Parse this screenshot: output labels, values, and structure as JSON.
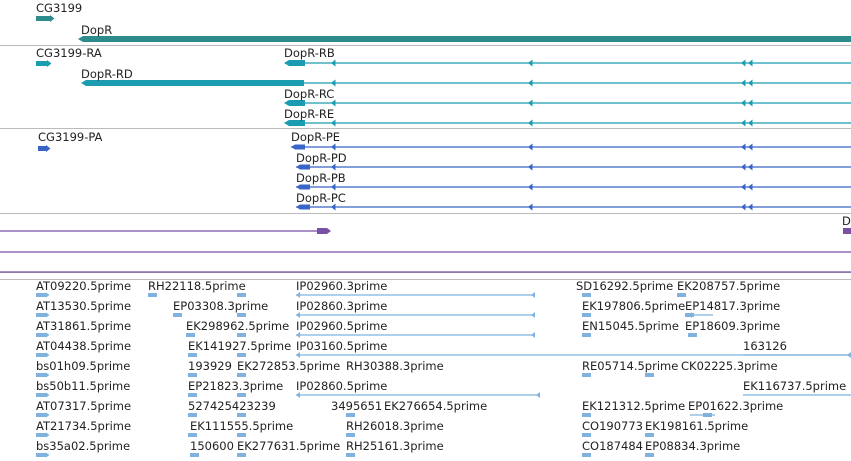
{
  "colors": {
    "gene": "#2e8b8b",
    "rna": "#1b9cb0",
    "protein": "#3a64c8",
    "purple": "#7a4fa6",
    "est": "#7fb3dd"
  },
  "tracks": {
    "genes": [
      {
        "label": "CG3199"
      },
      {
        "label": "DopR"
      }
    ],
    "transcripts": [
      {
        "label": "CG3199-RA"
      },
      {
        "label": "DopR-RB"
      },
      {
        "label": "DopR-RD"
      },
      {
        "label": "DopR-RC"
      },
      {
        "label": "DopR-RE"
      }
    ],
    "proteins": [
      {
        "label": "CG3199-PA"
      },
      {
        "label": "DopR-PE"
      },
      {
        "label": "DopR-PD"
      },
      {
        "label": "DopR-PB"
      },
      {
        "label": "DopR-PC"
      }
    ],
    "other": {
      "cut_label": "D"
    }
  },
  "ests": [
    {
      "label": "AT09220.5prime"
    },
    {
      "label": "RH22118.5prime"
    },
    {
      "label": "IP02960.3prime"
    },
    {
      "label": "SD16292.5prime"
    },
    {
      "label": "EK208757.5prime"
    },
    {
      "label": "AT13530.5prime"
    },
    {
      "label": "EP03308.3prime"
    },
    {
      "label": "IP02860.3prime"
    },
    {
      "label": "EK197806.5prime"
    },
    {
      "label": "EP14817.3prime"
    },
    {
      "label": "AT31861.5prime"
    },
    {
      "label": "EK298962.5prime"
    },
    {
      "label": "IP02960.5prime"
    },
    {
      "label": "EN15045.5prime"
    },
    {
      "label": "EP18609.3prime"
    },
    {
      "label": "AT04438.5prime"
    },
    {
      "label": "EK141927.5prime"
    },
    {
      "label": "IP03160.5prime"
    },
    {
      "label": "163126"
    },
    {
      "label": "bs01h09.5prime"
    },
    {
      "label": "193929"
    },
    {
      "label": "EK272853.5prime"
    },
    {
      "label": "RH30388.3prime"
    },
    {
      "label": "RE05714.5prime"
    },
    {
      "label": "CK02225.3prime"
    },
    {
      "label": "bs50b11.5prime"
    },
    {
      "label": "EP21823.3prime"
    },
    {
      "label": "IP02860.5prime"
    },
    {
      "label": "EK116737.5prime"
    },
    {
      "label": "AT07317.5prime"
    },
    {
      "label": "527425423239"
    },
    {
      "label": "3495651"
    },
    {
      "label": "EK276654.5prime"
    },
    {
      "label": "EK121312.5prime"
    },
    {
      "label": "EP01622.3prime"
    },
    {
      "label": "AT21734.5prime"
    },
    {
      "label": "EK111555.5prime"
    },
    {
      "label": "RH26018.3prime"
    },
    {
      "label": "CO190773"
    },
    {
      "label": "EK198161.5prime"
    },
    {
      "label": "bs35a02.5prime"
    },
    {
      "label": "150600"
    },
    {
      "label": "EK277631.5prime"
    },
    {
      "label": "RH25161.3prime"
    },
    {
      "label": "CO187484"
    },
    {
      "label": "EP08834.3prime"
    }
  ]
}
